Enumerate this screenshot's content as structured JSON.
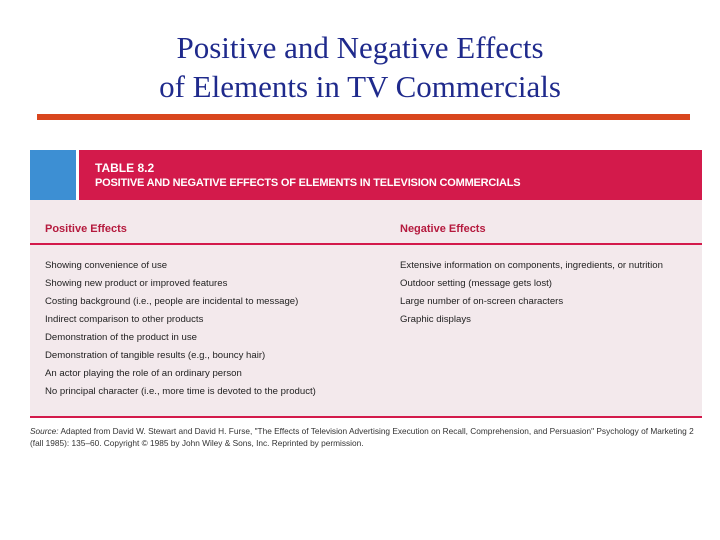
{
  "slide": {
    "title_line1": "Positive and Negative Effects",
    "title_line2": "of Elements in TV Commercials",
    "accent_color": "#d9461e"
  },
  "table": {
    "number": "TABLE 8.2",
    "caption": "POSITIVE AND NEGATIVE EFFECTS OF ELEMENTS IN TELEVISION COMMERCIALS",
    "header_color": "#d31a4b",
    "tab_color": "#3d8fd3",
    "positive_header": "Positive Effects",
    "negative_header": "Negative Effects",
    "positive_items": [
      "Showing convenience of use",
      "Showing new product or improved features",
      "Costing background (i.e., people are incidental to message)",
      "Indirect comparison to other products",
      "Demonstration of the product in use",
      "Demonstration of tangible results (e.g., bouncy hair)",
      "An actor playing the role of an ordinary person",
      "No principal character (i.e., more time is devoted to the product)"
    ],
    "negative_items": [
      "Extensive information on components, ingredients, or nutrition",
      "Outdoor setting (message gets lost)",
      "Large number of on-screen characters",
      "Graphic displays"
    ]
  },
  "source": {
    "label": "Source:",
    "line1": "Adapted from David W. Stewart and David H. Furse, \"The Effects of Television Advertising Execution on Recall, Comprehension, and Persuasion\" Psychology of Marketing 2",
    "line2": "(fall 1985): 135–60. Copyright © 1985 by John Wiley & Sons, Inc. Reprinted by permission."
  }
}
